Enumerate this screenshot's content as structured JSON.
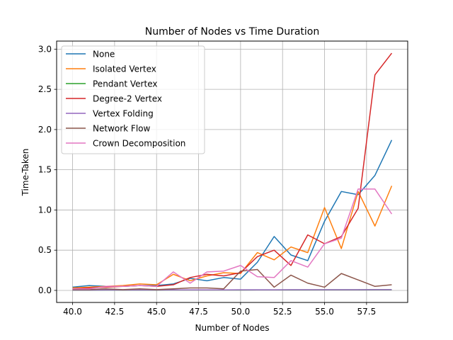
{
  "chart_data": {
    "type": "line",
    "title": "Number of Nodes vs Time Duration",
    "xlabel": "Number of Nodes",
    "ylabel": "Time-Taken",
    "xlim": [
      39.05,
      59.95
    ],
    "ylim": [
      -0.15,
      3.1
    ],
    "grid": true,
    "legend_position": "top-left",
    "x_ticks": [
      40.0,
      42.5,
      45.0,
      47.5,
      50.0,
      52.5,
      55.0,
      57.5
    ],
    "x_tick_labels": [
      "40.0",
      "42.5",
      "45.0",
      "47.5",
      "50.0",
      "52.5",
      "55.0",
      "57.5"
    ],
    "y_ticks": [
      0.0,
      0.5,
      1.0,
      1.5,
      2.0,
      2.5,
      3.0
    ],
    "y_tick_labels": [
      "0.0",
      "0.5",
      "1.0",
      "1.5",
      "2.0",
      "2.5",
      "3.0"
    ],
    "x": [
      40,
      41,
      42,
      43,
      44,
      45,
      46,
      47,
      48,
      49,
      50,
      51,
      52,
      53,
      54,
      55,
      56,
      57,
      58,
      59
    ],
    "series": [
      {
        "name": "None",
        "color": "#1f77b4",
        "values": [
          0.04,
          0.06,
          0.05,
          0.05,
          0.06,
          0.06,
          0.08,
          0.15,
          0.12,
          0.16,
          0.14,
          0.35,
          0.67,
          0.44,
          0.37,
          0.86,
          1.23,
          1.19,
          1.43,
          1.87
        ]
      },
      {
        "name": "Isolated Vertex",
        "color": "#ff7f0e",
        "values": [
          0.03,
          0.04,
          0.05,
          0.06,
          0.08,
          0.07,
          0.2,
          0.12,
          0.18,
          0.22,
          0.21,
          0.47,
          0.38,
          0.54,
          0.47,
          1.03,
          0.52,
          1.23,
          0.8,
          1.3
        ]
      },
      {
        "name": "Pendant Vertex",
        "color": "#2ca02c",
        "values": [
          0.003,
          0.003,
          0.004,
          0.004,
          0.004,
          0.004,
          0.005,
          0.005,
          0.005,
          0.005,
          0.005,
          0.006,
          0.006,
          0.006,
          0.006,
          0.007,
          0.007,
          0.007,
          0.008,
          0.008
        ]
      },
      {
        "name": "Degree-2 Vertex",
        "color": "#d62728",
        "values": [
          0.02,
          0.03,
          0.04,
          0.05,
          0.06,
          0.05,
          0.07,
          0.16,
          0.2,
          0.18,
          0.22,
          0.42,
          0.5,
          0.31,
          0.69,
          0.58,
          0.67,
          1.02,
          2.68,
          2.95
        ]
      },
      {
        "name": "Vertex Folding",
        "color": "#9467bd",
        "values": [
          0.004,
          0.004,
          0.005,
          0.005,
          0.005,
          0.005,
          0.006,
          0.006,
          0.006,
          0.006,
          0.007,
          0.007,
          0.007,
          0.008,
          0.008,
          0.008,
          0.009,
          0.009,
          0.01,
          0.01
        ]
      },
      {
        "name": "Network Flow",
        "color": "#8c564b",
        "values": [
          0.01,
          0.01,
          0.02,
          0.01,
          0.02,
          0.01,
          0.02,
          0.03,
          0.03,
          0.02,
          0.24,
          0.26,
          0.04,
          0.19,
          0.09,
          0.04,
          0.21,
          0.13,
          0.05,
          0.07
        ]
      },
      {
        "name": "Crown Decomposition",
        "color": "#e377c2",
        "values": [
          0.02,
          0.02,
          0.05,
          0.05,
          0.06,
          0.05,
          0.23,
          0.09,
          0.23,
          0.24,
          0.31,
          0.17,
          0.16,
          0.37,
          0.29,
          0.58,
          0.65,
          1.26,
          1.26,
          0.95
        ]
      }
    ]
  }
}
